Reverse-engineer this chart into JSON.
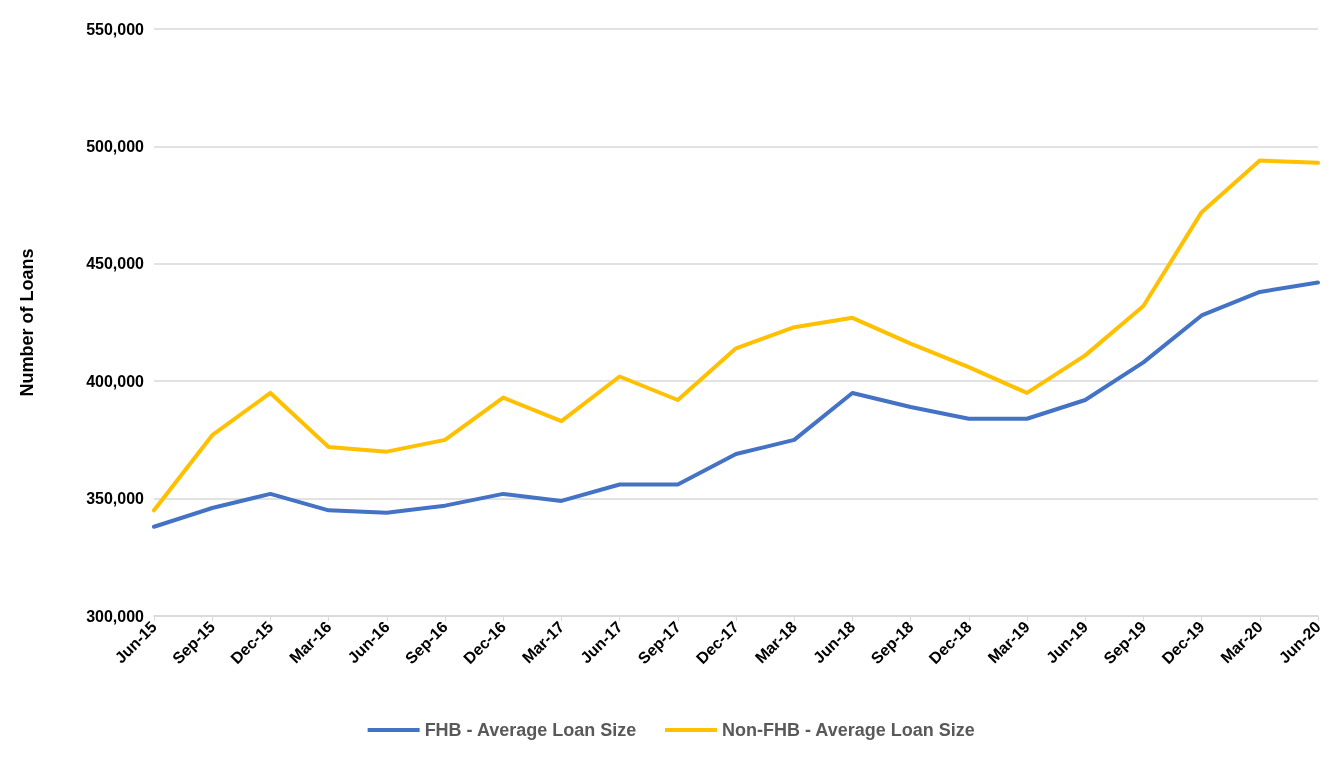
{
  "chart_data": {
    "type": "line",
    "ylabel": "Number of Loans",
    "categories": [
      "Jun-15",
      "Sep-15",
      "Dec-15",
      "Mar-16",
      "Jun-16",
      "Sep-16",
      "Dec-16",
      "Mar-17",
      "Jun-17",
      "Sep-17",
      "Dec-17",
      "Mar-18",
      "Jun-18",
      "Sep-18",
      "Dec-18",
      "Mar-19",
      "Jun-19",
      "Sep-19",
      "Dec-19",
      "Mar-20",
      "Jun-20"
    ],
    "series": [
      {
        "name": "FHB - Average Loan Size",
        "color": "#4472c4",
        "values": [
          338000,
          346000,
          352000,
          345000,
          344000,
          347000,
          352000,
          349000,
          356000,
          356000,
          369000,
          375000,
          395000,
          389000,
          384000,
          384000,
          392000,
          408000,
          428000,
          438000,
          442000
        ]
      },
      {
        "name": "Non-FHB - Average Loan Size",
        "color": "#ffc000",
        "values": [
          345000,
          377000,
          395000,
          372000,
          370000,
          375000,
          393000,
          383000,
          402000,
          392000,
          414000,
          423000,
          427000,
          416000,
          406000,
          395000,
          411000,
          432000,
          472000,
          494000,
          493000
        ]
      }
    ],
    "ylim": [
      300000,
      550000
    ],
    "yticks": [
      {
        "value": 300000,
        "label": "300,000"
      },
      {
        "value": 350000,
        "label": "350,000"
      },
      {
        "value": 400000,
        "label": "400,000"
      },
      {
        "value": 450000,
        "label": "450,000"
      },
      {
        "value": 500000,
        "label": "500,000"
      },
      {
        "value": 550000,
        "label": "550,000"
      }
    ],
    "grid": "y",
    "legend": "bottom",
    "marker": "none",
    "line_style": "solid"
  }
}
